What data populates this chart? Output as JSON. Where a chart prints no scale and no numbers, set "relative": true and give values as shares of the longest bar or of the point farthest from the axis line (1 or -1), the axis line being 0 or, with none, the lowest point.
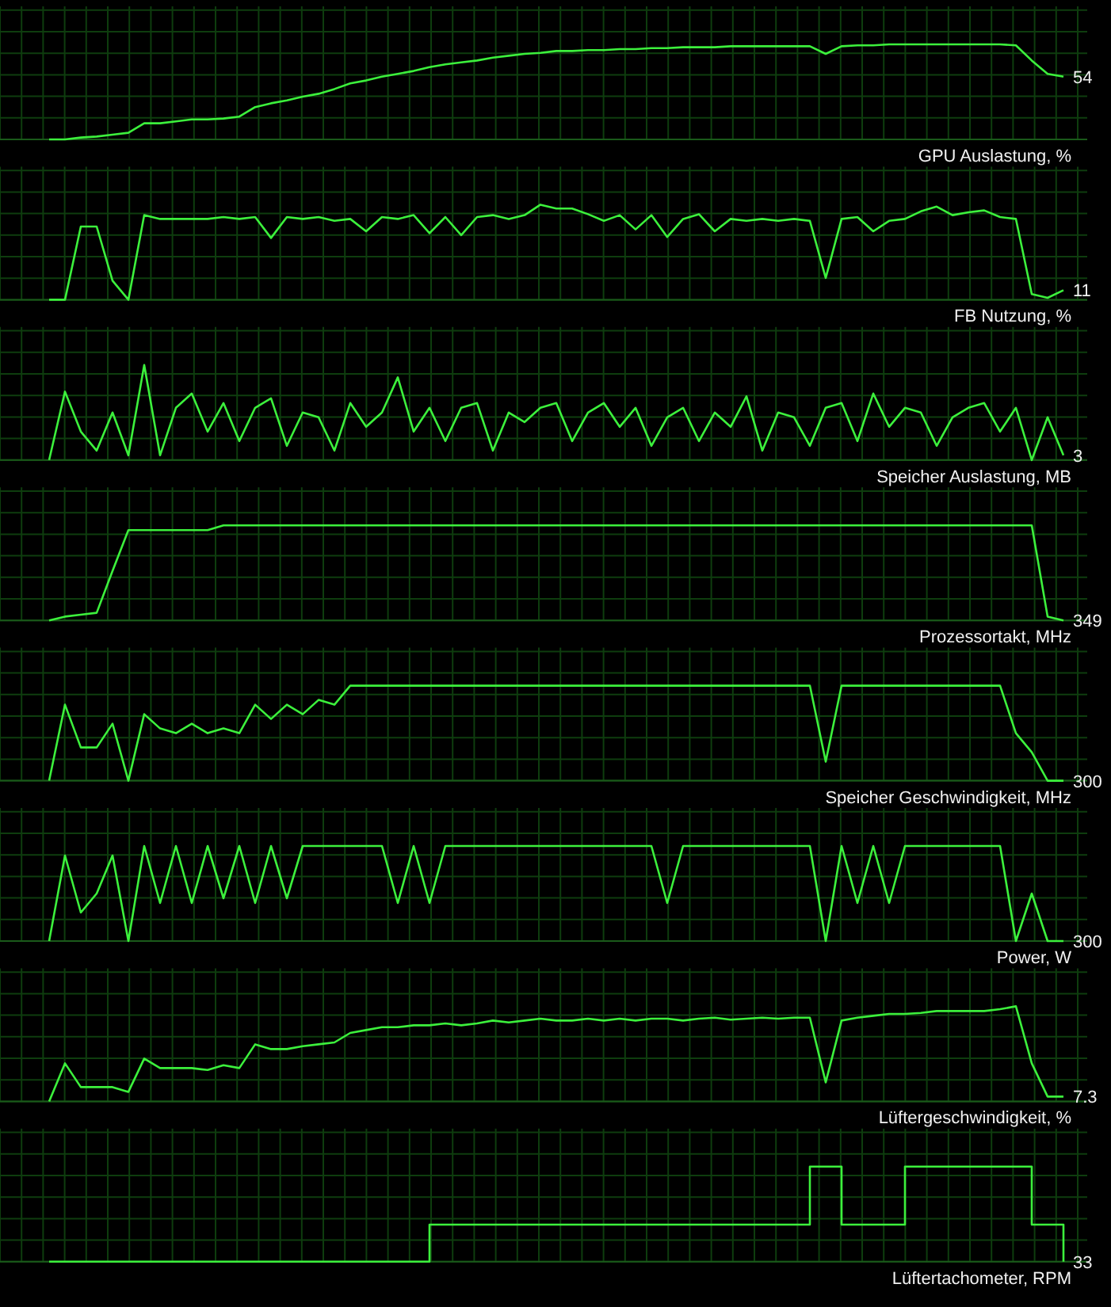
{
  "chart_data": [
    {
      "type": "line",
      "title": "GPU Auslastung, %",
      "relative": true,
      "grid": true,
      "color": "#3cf03c",
      "categories": [
        null,
        null,
        null,
        null,
        null,
        null,
        null,
        null,
        null,
        null,
        null,
        null,
        null,
        null,
        null,
        null,
        null,
        null,
        null,
        null,
        null,
        null,
        null,
        null,
        null,
        null,
        null,
        null,
        null,
        null,
        null,
        null,
        null,
        null,
        null,
        null,
        null,
        null,
        null,
        null,
        null,
        null,
        null,
        null,
        null,
        null,
        null,
        null,
        null,
        null,
        null,
        null,
        null,
        null,
        null,
        null,
        null,
        null,
        null,
        null,
        null,
        null,
        null,
        null,
        null
      ],
      "values": [
        0,
        0,
        0.02,
        0.03,
        0.05,
        0.07,
        0.17,
        0.17,
        0.19,
        0.21,
        0.21,
        0.22,
        0.24,
        0.34,
        0.38,
        0.41,
        0.45,
        0.48,
        0.53,
        0.59,
        0.62,
        0.66,
        0.69,
        0.72,
        0.76,
        0.79,
        0.81,
        0.83,
        0.86,
        0.88,
        0.9,
        0.91,
        0.93,
        0.93,
        0.94,
        0.94,
        0.95,
        0.95,
        0.96,
        0.96,
        0.97,
        0.97,
        0.97,
        0.98,
        0.98,
        0.98,
        0.98,
        0.98,
        0.98,
        0.9,
        0.98,
        0.99,
        0.99,
        1,
        1,
        1,
        1,
        1,
        1,
        1,
        1,
        0.99,
        0.83,
        0.69,
        0.66
      ],
      "annotations": [
        "54"
      ]
    },
    {
      "type": "line",
      "title": "FB Nutzung, %",
      "relative": true,
      "grid": true,
      "color": "#3cf03c",
      "categories": [
        null,
        null,
        null,
        null,
        null,
        null,
        null,
        null,
        null,
        null,
        null,
        null,
        null,
        null,
        null,
        null,
        null,
        null,
        null,
        null,
        null,
        null,
        null,
        null,
        null,
        null,
        null,
        null,
        null,
        null,
        null,
        null,
        null,
        null,
        null,
        null,
        null,
        null,
        null,
        null,
        null,
        null,
        null,
        null,
        null,
        null,
        null,
        null,
        null,
        null,
        null,
        null,
        null,
        null,
        null,
        null,
        null,
        null,
        null,
        null,
        null,
        null,
        null,
        null,
        null
      ],
      "values": [
        0,
        0,
        0.77,
        0.77,
        0.2,
        0,
        0.89,
        0.85,
        0.85,
        0.85,
        0.85,
        0.87,
        0.85,
        0.87,
        0.65,
        0.87,
        0.85,
        0.87,
        0.83,
        0.85,
        0.72,
        0.87,
        0.85,
        0.89,
        0.7,
        0.87,
        0.68,
        0.87,
        0.89,
        0.85,
        0.89,
        1,
        0.96,
        0.96,
        0.9,
        0.83,
        0.89,
        0.74,
        0.89,
        0.66,
        0.85,
        0.9,
        0.72,
        0.85,
        0.83,
        0.85,
        0.83,
        0.85,
        0.83,
        0.23,
        0.85,
        0.87,
        0.72,
        0.83,
        0.85,
        0.93,
        0.98,
        0.89,
        0.92,
        0.94,
        0.87,
        0.85,
        0.06,
        0.02,
        0.1
      ],
      "annotations": [
        "11"
      ]
    },
    {
      "type": "line",
      "title": "Speicher Auslastung, MB",
      "relative": true,
      "grid": true,
      "color": "#3cf03c",
      "categories": [
        null,
        null,
        null,
        null,
        null,
        null,
        null,
        null,
        null,
        null,
        null,
        null,
        null,
        null,
        null,
        null,
        null,
        null,
        null,
        null,
        null,
        null,
        null,
        null,
        null,
        null,
        null,
        null,
        null,
        null,
        null,
        null,
        null,
        null,
        null,
        null,
        null,
        null,
        null,
        null,
        null,
        null,
        null,
        null,
        null,
        null,
        null,
        null,
        null,
        null,
        null,
        null,
        null,
        null,
        null,
        null,
        null,
        null,
        null,
        null,
        null,
        null,
        null,
        null,
        null
      ],
      "values": [
        0,
        0.72,
        0.3,
        0.1,
        0.5,
        0.05,
        1,
        0.05,
        0.55,
        0.7,
        0.3,
        0.6,
        0.2,
        0.55,
        0.65,
        0.15,
        0.5,
        0.45,
        0.1,
        0.6,
        0.35,
        0.5,
        0.87,
        0.3,
        0.55,
        0.2,
        0.55,
        0.6,
        0.1,
        0.5,
        0.4,
        0.55,
        0.6,
        0.2,
        0.5,
        0.6,
        0.35,
        0.55,
        0.15,
        0.45,
        0.55,
        0.2,
        0.5,
        0.35,
        0.67,
        0.1,
        0.5,
        0.45,
        0.15,
        0.55,
        0.6,
        0.2,
        0.7,
        0.35,
        0.55,
        0.5,
        0.15,
        0.45,
        0.55,
        0.6,
        0.3,
        0.55,
        0,
        0.45,
        0.05
      ],
      "annotations": [
        "3"
      ]
    },
    {
      "type": "line",
      "title": "Prozessortakt, MHz",
      "relative": true,
      "grid": true,
      "color": "#3cf03c",
      "categories": [
        null,
        null,
        null,
        null,
        null,
        null,
        null,
        null,
        null,
        null,
        null,
        null,
        null,
        null,
        null,
        null,
        null,
        null,
        null,
        null,
        null,
        null,
        null,
        null,
        null,
        null,
        null,
        null,
        null,
        null,
        null,
        null,
        null,
        null,
        null,
        null,
        null,
        null,
        null,
        null,
        null,
        null,
        null,
        null,
        null,
        null,
        null,
        null,
        null,
        null,
        null,
        null,
        null,
        null,
        null,
        null,
        null,
        null,
        null,
        null,
        null,
        null,
        null,
        null,
        null
      ],
      "values": [
        0,
        0.04,
        0.06,
        0.08,
        0.52,
        0.95,
        0.95,
        0.95,
        0.95,
        0.95,
        0.95,
        1,
        1,
        1,
        1,
        1,
        1,
        1,
        1,
        1,
        1,
        1,
        1,
        1,
        1,
        1,
        1,
        1,
        1,
        1,
        1,
        1,
        1,
        1,
        1,
        1,
        1,
        1,
        1,
        1,
        1,
        1,
        1,
        1,
        1,
        1,
        1,
        1,
        1,
        1,
        1,
        1,
        1,
        1,
        1,
        1,
        1,
        1,
        1,
        1,
        1,
        1,
        1,
        0.04,
        0
      ],
      "annotations": [
        "349"
      ]
    },
    {
      "type": "line",
      "title": "Speicher Geschwindigkeit, MHz",
      "relative": true,
      "grid": true,
      "color": "#3cf03c",
      "categories": [
        null,
        null,
        null,
        null,
        null,
        null,
        null,
        null,
        null,
        null,
        null,
        null,
        null,
        null,
        null,
        null,
        null,
        null,
        null,
        null,
        null,
        null,
        null,
        null,
        null,
        null,
        null,
        null,
        null,
        null,
        null,
        null,
        null,
        null,
        null,
        null,
        null,
        null,
        null,
        null,
        null,
        null,
        null,
        null,
        null,
        null,
        null,
        null,
        null,
        null,
        null,
        null,
        null,
        null,
        null,
        null,
        null,
        null,
        null,
        null,
        null,
        null,
        null,
        null,
        null
      ],
      "values": [
        0,
        0.8,
        0.35,
        0.35,
        0.6,
        0,
        0.7,
        0.55,
        0.5,
        0.6,
        0.5,
        0.55,
        0.5,
        0.8,
        0.65,
        0.8,
        0.7,
        0.85,
        0.8,
        1,
        1,
        1,
        1,
        1,
        1,
        1,
        1,
        1,
        1,
        1,
        1,
        1,
        1,
        1,
        1,
        1,
        1,
        1,
        1,
        1,
        1,
        1,
        1,
        1,
        1,
        1,
        1,
        1,
        1,
        0.2,
        1,
        1,
        1,
        1,
        1,
        1,
        1,
        1,
        1,
        1,
        1,
        0.5,
        0.3,
        0,
        0
      ],
      "annotations": [
        "300"
      ]
    },
    {
      "type": "line",
      "title": "Power, W",
      "relative": true,
      "grid": true,
      "color": "#3cf03c",
      "categories": [
        null,
        null,
        null,
        null,
        null,
        null,
        null,
        null,
        null,
        null,
        null,
        null,
        null,
        null,
        null,
        null,
        null,
        null,
        null,
        null,
        null,
        null,
        null,
        null,
        null,
        null,
        null,
        null,
        null,
        null,
        null,
        null,
        null,
        null,
        null,
        null,
        null,
        null,
        null,
        null,
        null,
        null,
        null,
        null,
        null,
        null,
        null,
        null,
        null,
        null,
        null,
        null,
        null,
        null,
        null,
        null,
        null,
        null,
        null,
        null,
        null,
        null,
        null,
        null,
        null
      ],
      "values": [
        0,
        0.9,
        0.3,
        0.5,
        0.9,
        0,
        1,
        0.4,
        1,
        0.4,
        1,
        0.45,
        1,
        0.4,
        1,
        0.45,
        1,
        1,
        1,
        1,
        1,
        1,
        0.4,
        1,
        0.4,
        1,
        1,
        1,
        1,
        1,
        1,
        1,
        1,
        1,
        1,
        1,
        1,
        1,
        1,
        0.4,
        1,
        1,
        1,
        1,
        1,
        1,
        1,
        1,
        1,
        0,
        1,
        0.4,
        1,
        0.4,
        1,
        1,
        1,
        1,
        1,
        1,
        1,
        0,
        0.5,
        0,
        0
      ],
      "annotations": [
        "300"
      ]
    },
    {
      "type": "line",
      "title": "Lüftergeschwindigkeit, %",
      "relative": true,
      "grid": true,
      "color": "#3cf03c",
      "categories": [
        null,
        null,
        null,
        null,
        null,
        null,
        null,
        null,
        null,
        null,
        null,
        null,
        null,
        null,
        null,
        null,
        null,
        null,
        null,
        null,
        null,
        null,
        null,
        null,
        null,
        null,
        null,
        null,
        null,
        null,
        null,
        null,
        null,
        null,
        null,
        null,
        null,
        null,
        null,
        null,
        null,
        null,
        null,
        null,
        null,
        null,
        null,
        null,
        null,
        null,
        null,
        null,
        null,
        null,
        null,
        null,
        null,
        null,
        null,
        null,
        null,
        null,
        null,
        null,
        null
      ],
      "values": [
        0,
        0.4,
        0.15,
        0.15,
        0.15,
        0.1,
        0.45,
        0.35,
        0.35,
        0.35,
        0.33,
        0.38,
        0.35,
        0.6,
        0.55,
        0.55,
        0.58,
        0.6,
        0.62,
        0.72,
        0.75,
        0.78,
        0.78,
        0.8,
        0.8,
        0.82,
        0.8,
        0.82,
        0.85,
        0.83,
        0.85,
        0.87,
        0.85,
        0.85,
        0.87,
        0.85,
        0.87,
        0.85,
        0.87,
        0.87,
        0.85,
        0.87,
        0.88,
        0.86,
        0.87,
        0.88,
        0.87,
        0.88,
        0.88,
        0.2,
        0.85,
        0.88,
        0.9,
        0.92,
        0.92,
        0.93,
        0.95,
        0.95,
        0.95,
        0.95,
        0.97,
        1,
        0.4,
        0.05,
        0.05
      ],
      "annotations": [
        "7.3"
      ]
    },
    {
      "type": "step",
      "title": "Lüftertachometer, RPM",
      "relative": true,
      "grid": true,
      "color": "#3cf03c",
      "categories": [
        null,
        null,
        null,
        null,
        null,
        null,
        null,
        null,
        null,
        null,
        null,
        null,
        null,
        null,
        null,
        null,
        null,
        null,
        null,
        null,
        null,
        null,
        null,
        null,
        null,
        null,
        null,
        null,
        null,
        null,
        null,
        null,
        null,
        null,
        null,
        null,
        null,
        null,
        null,
        null,
        null,
        null,
        null,
        null,
        null,
        null,
        null,
        null,
        null,
        null,
        null,
        null,
        null,
        null,
        null,
        null,
        null,
        null,
        null,
        null,
        null,
        null,
        null,
        null,
        null
      ],
      "values": [
        0,
        0,
        0,
        0,
        0,
        0,
        0,
        0,
        0,
        0,
        0,
        0,
        0,
        0,
        0,
        0,
        0,
        0,
        0,
        0,
        0,
        0,
        0,
        0,
        0.39,
        0.39,
        0.39,
        0.39,
        0.39,
        0.39,
        0.39,
        0.39,
        0.39,
        0.39,
        0.39,
        0.39,
        0.39,
        0.39,
        0.39,
        0.39,
        0.39,
        0.39,
        0.39,
        0.39,
        0.39,
        0.39,
        0.39,
        0.39,
        1,
        1,
        0.39,
        0.39,
        0.39,
        0.39,
        1,
        1,
        1,
        1,
        1,
        1,
        1,
        1,
        0.39,
        0.39,
        0
      ],
      "annotations": [
        "33"
      ]
    }
  ]
}
